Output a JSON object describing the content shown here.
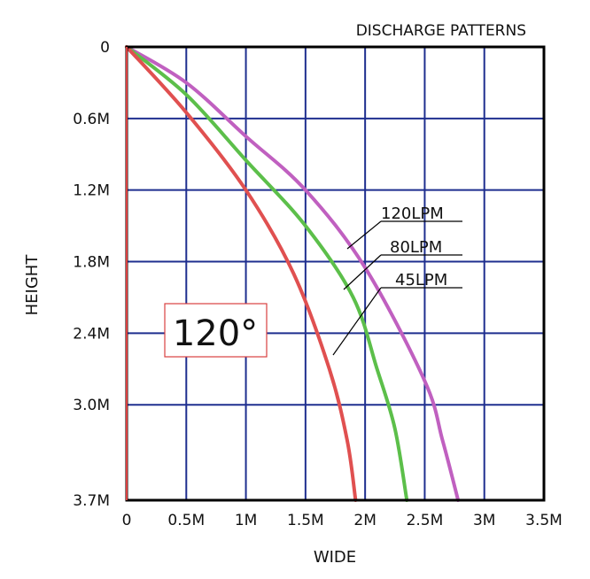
{
  "chart_data": {
    "type": "line",
    "title": "DISCHARGE PATTERNS",
    "xlabel": "WIDE",
    "ylabel": "HEIGHT",
    "x_ticks": [
      "0",
      "0.5M",
      "1M",
      "1.5M",
      "2M",
      "2.5M",
      "3M",
      "3.5M"
    ],
    "y_ticks": [
      "0",
      "0.6M",
      "1.2M",
      "1.8M",
      "2.4M",
      "3.0M",
      "3.7M"
    ],
    "xlim": [
      0,
      3.5
    ],
    "ylim": [
      0,
      3.8
    ],
    "angle_label": "120°",
    "colors": {
      "grid": "#1f2f8f",
      "frame": "#000000",
      "left_axis": "#d94040"
    },
    "series": [
      {
        "name": "120LPM",
        "color": "#c060c0",
        "x": [
          0,
          0.5,
          1.0,
          1.5,
          2.0,
          2.5,
          2.65,
          2.78
        ],
        "y": [
          0,
          0.3,
          0.75,
          1.2,
          1.85,
          2.8,
          3.3,
          3.8
        ]
      },
      {
        "name": "80LPM",
        "color": "#5cbf4a",
        "x": [
          0,
          0.5,
          1.0,
          1.5,
          1.9,
          2.1,
          2.25,
          2.35
        ],
        "y": [
          0,
          0.4,
          0.95,
          1.5,
          2.1,
          2.7,
          3.2,
          3.8
        ]
      },
      {
        "name": "45LPM",
        "color": "#e05050",
        "x": [
          0,
          0.5,
          1.0,
          1.4,
          1.7,
          1.85,
          1.92
        ],
        "y": [
          0,
          0.55,
          1.2,
          1.9,
          2.7,
          3.3,
          3.8
        ]
      }
    ]
  }
}
